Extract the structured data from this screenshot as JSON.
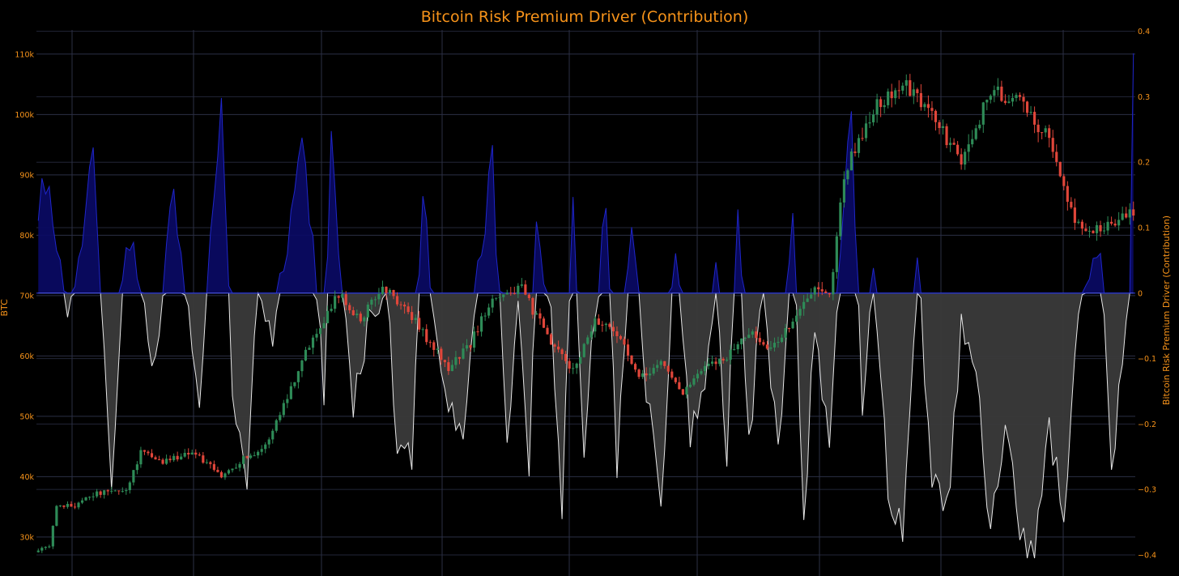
{
  "chart_data": {
    "type": "candlestick + area",
    "title": "Bitcoin Risk Premium Driver (Contribution)",
    "colors": {
      "background": "#000000",
      "text": "#f7931a",
      "grid": "#2b2f45",
      "candle_up": "#2e8b57",
      "candle_down": "#e0463a",
      "positive_fill": "#0a0a66",
      "positive_line": "#1f26c9",
      "negative_fill": "#3a3a3a",
      "negative_line": "#e6e6e6",
      "zero_line": "#2a37d6"
    },
    "y_left": {
      "label": "BTC",
      "range": [
        26500,
        114000
      ],
      "ticks": [
        30000,
        40000,
        50000,
        60000,
        70000,
        80000,
        90000,
        100000,
        110000
      ],
      "tick_labels": [
        "30k",
        "40k",
        "50k",
        "60k",
        "70k",
        "80k",
        "90k",
        "100k",
        "110k"
      ]
    },
    "y_right": {
      "label": "Bitcoin Risk Premium Driver (Contribution)",
      "range": [
        -0.405,
        0.402
      ],
      "ticks": [
        -0.4,
        -0.3,
        -0.2,
        -0.1,
        0,
        0.1,
        0.2,
        0.3,
        0.4
      ],
      "tick_labels": [
        "−0.4",
        "−0.3",
        "−0.2",
        "−0.1",
        "0",
        "0.1",
        "0.2",
        "0.3",
        "0.4"
      ]
    },
    "grid": true,
    "legend": "none",
    "btc_path_anchors": [
      [
        0,
        27500
      ],
      [
        3,
        28800
      ],
      [
        5,
        34800
      ],
      [
        10,
        35300
      ],
      [
        14,
        37000
      ],
      [
        24,
        37800
      ],
      [
        28,
        44000
      ],
      [
        34,
        42500
      ],
      [
        42,
        44200
      ],
      [
        50,
        40000
      ],
      [
        56,
        43000
      ],
      [
        62,
        45000
      ],
      [
        67,
        52000
      ],
      [
        74,
        62000
      ],
      [
        82,
        70500
      ],
      [
        88,
        66000
      ],
      [
        94,
        71500
      ],
      [
        100,
        68000
      ],
      [
        106,
        63000
      ],
      [
        112,
        58000
      ],
      [
        118,
        62000
      ],
      [
        124,
        70000
      ],
      [
        132,
        71000
      ],
      [
        140,
        62000
      ],
      [
        146,
        57500
      ],
      [
        152,
        66000
      ],
      [
        158,
        64000
      ],
      [
        164,
        56000
      ],
      [
        170,
        59000
      ],
      [
        176,
        54000
      ],
      [
        182,
        58000
      ],
      [
        188,
        60000
      ],
      [
        194,
        64000
      ],
      [
        200,
        61000
      ],
      [
        206,
        66000
      ],
      [
        212,
        71000
      ],
      [
        216,
        69500
      ],
      [
        220,
        90000
      ],
      [
        228,
        101000
      ],
      [
        236,
        105000
      ],
      [
        244,
        100000
      ],
      [
        252,
        92000
      ],
      [
        260,
        104000
      ],
      [
        268,
        102000
      ],
      [
        276,
        96000
      ],
      [
        282,
        84000
      ],
      [
        286,
        80000
      ],
      [
        292,
        82000
      ],
      [
        299,
        83500
      ]
    ],
    "risk_contribution_anchors": [
      [
        0,
        0.14
      ],
      [
        3,
        0.18
      ],
      [
        5,
        0.05
      ],
      [
        8,
        -0.02
      ],
      [
        10,
        0.01
      ],
      [
        15,
        0.24
      ],
      [
        17,
        0.0
      ],
      [
        20,
        -0.28
      ],
      [
        24,
        0.08
      ],
      [
        28,
        0.02
      ],
      [
        32,
        -0.12
      ],
      [
        37,
        0.17
      ],
      [
        40,
        0.01
      ],
      [
        44,
        -0.15
      ],
      [
        46,
        0.0
      ],
      [
        50,
        0.28
      ],
      [
        53,
        -0.16
      ],
      [
        57,
        -0.28
      ],
      [
        60,
        0.0
      ],
      [
        64,
        -0.06
      ],
      [
        68,
        0.08
      ],
      [
        72,
        0.24
      ],
      [
        75,
        0.06
      ],
      [
        78,
        -0.15
      ],
      [
        80,
        0.23
      ],
      [
        83,
        0.0
      ],
      [
        86,
        -0.18
      ],
      [
        90,
        -0.04
      ],
      [
        95,
        0.0
      ],
      [
        98,
        -0.22
      ],
      [
        102,
        -0.24
      ],
      [
        105,
        0.16
      ],
      [
        108,
        -0.04
      ],
      [
        112,
        -0.18
      ],
      [
        116,
        -0.23
      ],
      [
        120,
        0.04
      ],
      [
        124,
        0.2
      ],
      [
        128,
        -0.25
      ],
      [
        131,
        -0.03
      ],
      [
        134,
        -0.3
      ],
      [
        136,
        0.13
      ],
      [
        140,
        -0.05
      ],
      [
        143,
        -0.32
      ],
      [
        146,
        0.14
      ],
      [
        149,
        -0.23
      ],
      [
        152,
        -0.04
      ],
      [
        155,
        0.14
      ],
      [
        158,
        -0.26
      ],
      [
        162,
        0.1
      ],
      [
        166,
        -0.15
      ],
      [
        170,
        -0.32
      ],
      [
        174,
        0.09
      ],
      [
        178,
        -0.21
      ],
      [
        182,
        -0.15
      ],
      [
        185,
        0.03
      ],
      [
        188,
        -0.26
      ],
      [
        191,
        0.13
      ],
      [
        194,
        -0.22
      ],
      [
        198,
        0.0
      ],
      [
        202,
        -0.25
      ],
      [
        206,
        0.12
      ],
      [
        209,
        -0.35
      ],
      [
        212,
        -0.05
      ],
      [
        216,
        -0.24
      ],
      [
        219,
        0.06
      ],
      [
        222,
        0.28
      ],
      [
        225,
        -0.2
      ],
      [
        228,
        0.02
      ],
      [
        232,
        -0.3
      ],
      [
        236,
        -0.36
      ],
      [
        240,
        0.05
      ],
      [
        244,
        -0.28
      ],
      [
        248,
        -0.34
      ],
      [
        252,
        -0.06
      ],
      [
        256,
        -0.12
      ],
      [
        260,
        -0.38
      ],
      [
        264,
        -0.2
      ],
      [
        268,
        -0.37
      ],
      [
        272,
        -0.41
      ],
      [
        276,
        -0.2
      ],
      [
        280,
        -0.34
      ],
      [
        284,
        -0.02
      ],
      [
        288,
        0.05
      ],
      [
        290,
        0.06
      ],
      [
        293,
        -0.29
      ],
      [
        296,
        -0.1
      ],
      [
        298,
        0.0
      ],
      [
        299,
        0.36
      ]
    ]
  }
}
